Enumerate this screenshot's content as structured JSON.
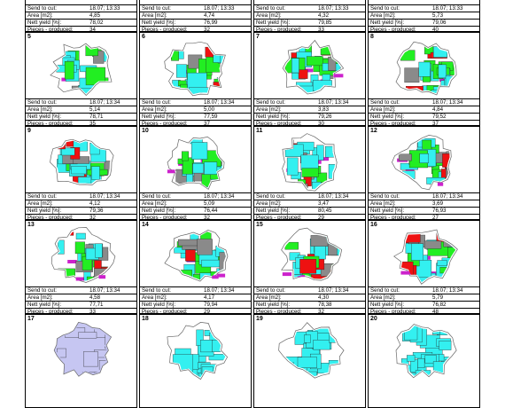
{
  "cells": [
    {
      "num": "",
      "send_label": "Send to cut:",
      "send": "18.07; 13:33",
      "area_label": "Area [m2]:",
      "area": "4,85",
      "yield_label": "Nett yield [%]:",
      "yield": "78,02",
      "pieces_label": "Pieces - produced:",
      "pieces": "34",
      "style": "none"
    },
    {
      "num": "",
      "send_label": "Send to cut:",
      "send": "18.07; 13:33",
      "area_label": "Area [m2]:",
      "area": "4,74",
      "yield_label": "Nett yield [%]:",
      "yield": "76,99",
      "pieces_label": "Pieces - produced:",
      "pieces": "32",
      "style": "none"
    },
    {
      "num": "",
      "send_label": "Send to cut:",
      "send": "18.07; 13:33",
      "area_label": "Area [m2]:",
      "area": "4,32",
      "yield_label": "Nett yield [%]:",
      "yield": "79,85",
      "pieces_label": "Pieces - produced:",
      "pieces": "33",
      "style": "none"
    },
    {
      "num": "",
      "send_label": "Send to cut:",
      "send": "18.07; 13:33",
      "area_label": "Area [m2]:",
      "area": "5,73",
      "yield_label": "Nett yield [%]:",
      "yield": "79,06",
      "pieces_label": "Pieces - produced:",
      "pieces": "40",
      "style": "none"
    },
    {
      "num": "5",
      "send_label": "Send to cut:",
      "send": "18.07; 13:34",
      "area_label": "Area [m2]:",
      "area": "5,14",
      "yield_label": "Nett yield [%]:",
      "yield": "78,71",
      "pieces_label": "Pieces - produced:",
      "pieces": "35",
      "style": "mixed"
    },
    {
      "num": "6",
      "send_label": "Send to cut:",
      "send": "18.07; 13:34",
      "area_label": "Area [m2]:",
      "area": "5,00",
      "yield_label": "Nett yield [%]:",
      "yield": "77,59",
      "pieces_label": "Pieces - produced:",
      "pieces": "37",
      "style": "mixed"
    },
    {
      "num": "7",
      "send_label": "Send to cut:",
      "send": "18.07; 13:34",
      "area_label": "Area [m2]:",
      "area": "3,83",
      "yield_label": "Nett yield [%]:",
      "yield": "79,26",
      "pieces_label": "Pieces - produced:",
      "pieces": "30",
      "style": "mixed"
    },
    {
      "num": "8",
      "send_label": "Send to cut:",
      "send": "18.07; 13:34",
      "area_label": "Area [m2]:",
      "area": "4,84",
      "yield_label": "Nett yield [%]:",
      "yield": "79,52",
      "pieces_label": "Pieces - produced:",
      "pieces": "37",
      "style": "mixed"
    },
    {
      "num": "9",
      "send_label": "Send to cut:",
      "send": "18.07; 13:34",
      "area_label": "Area [m2]:",
      "area": "4,12",
      "yield_label": "Nett yield [%]:",
      "yield": "79,36",
      "pieces_label": "Pieces - produced:",
      "pieces": "32",
      "style": "mixed"
    },
    {
      "num": "10",
      "send_label": "Send to cut:",
      "send": "18.07; 13:34",
      "area_label": "Area [m2]:",
      "area": "5,09",
      "yield_label": "Nett yield [%]:",
      "yield": "76,44",
      "pieces_label": "Pieces - produced:",
      "pieces": "32",
      "style": "mixed"
    },
    {
      "num": "11",
      "send_label": "Send to cut:",
      "send": "18.07; 13:34",
      "area_label": "Area [m2]:",
      "area": "3,47",
      "yield_label": "Nett yield [%]:",
      "yield": "80,45",
      "pieces_label": "Pieces - produced:",
      "pieces": "29",
      "style": "mixed"
    },
    {
      "num": "12",
      "send_label": "Send to cut:",
      "send": "18.07; 13:34",
      "area_label": "Area [m2]:",
      "area": "3,69",
      "yield_label": "Nett yield [%]:",
      "yield": "76,93",
      "pieces_label": "Pieces - produced:",
      "pieces": "27",
      "style": "mixed"
    },
    {
      "num": "13",
      "send_label": "Send to cut:",
      "send": "18.07; 13:34",
      "area_label": "Area [m2]:",
      "area": "4,58",
      "yield_label": "Nett yield [%]:",
      "yield": "77,71",
      "pieces_label": "Pieces - produced:",
      "pieces": "33",
      "style": "mixed"
    },
    {
      "num": "14",
      "send_label": "Send to cut:",
      "send": "18.07; 13:34",
      "area_label": "Area [m2]:",
      "area": "4,17",
      "yield_label": "Nett yield [%]:",
      "yield": "79,94",
      "pieces_label": "Pieces - produced:",
      "pieces": "29",
      "style": "mixed"
    },
    {
      "num": "15",
      "send_label": "Send to cut:",
      "send": "18.07; 13:34",
      "area_label": "Area [m2]:",
      "area": "4,30",
      "yield_label": "Nett yield [%]:",
      "yield": "78,38",
      "pieces_label": "Pieces - produced:",
      "pieces": "32",
      "style": "mixed"
    },
    {
      "num": "16",
      "send_label": "Send to cut:",
      "send": "18.07; 13:34",
      "area_label": "Area [m2]:",
      "area": "5,79",
      "yield_label": "Nett yield [%]:",
      "yield": "76,82",
      "pieces_label": "Pieces - produced:",
      "pieces": "48",
      "style": "mixed"
    },
    {
      "num": "17",
      "send_label": "",
      "send": "",
      "area_label": "",
      "area": "",
      "yield_label": "",
      "yield": "",
      "pieces_label": "",
      "pieces": "",
      "style": "lavender"
    },
    {
      "num": "18",
      "send_label": "",
      "send": "",
      "area_label": "",
      "area": "",
      "yield_label": "",
      "yield": "",
      "pieces_label": "",
      "pieces": "",
      "style": "cyan"
    },
    {
      "num": "19",
      "send_label": "",
      "send": "",
      "area_label": "",
      "area": "",
      "yield_label": "",
      "yield": "",
      "pieces_label": "",
      "pieces": "",
      "style": "cyan"
    },
    {
      "num": "20",
      "send_label": "",
      "send": "",
      "area_label": "",
      "area": "",
      "yield_label": "",
      "yield": "",
      "pieces_label": "",
      "pieces": "",
      "style": "cyan"
    }
  ],
  "colors": {
    "cyan": "#33f0f0",
    "green": "#22ee22",
    "red": "#ee1111",
    "gray": "#8a8a8a",
    "magenta": "#cc22cc",
    "lavender": "#c6c6f2",
    "outline": "#666666"
  }
}
